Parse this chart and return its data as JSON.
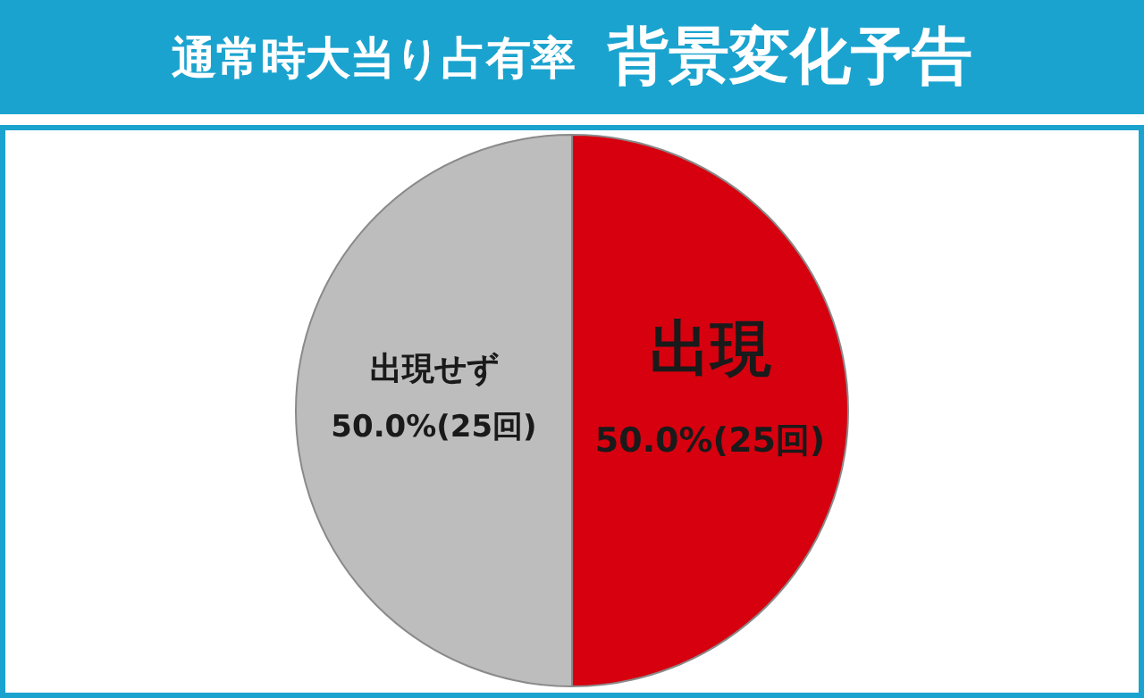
{
  "chart_data": {
    "type": "pie",
    "title": "通常時大当り占有率",
    "subtitle": "背景変化予告",
    "categories": [
      "出現",
      "出現せず"
    ],
    "values": [
      50.0,
      50.0
    ],
    "value_labels": [
      "50.0%(25回)",
      "50.0%(25回)"
    ],
    "colors": [
      "#d7000f",
      "#bdbdbd"
    ],
    "legend": false
  }
}
